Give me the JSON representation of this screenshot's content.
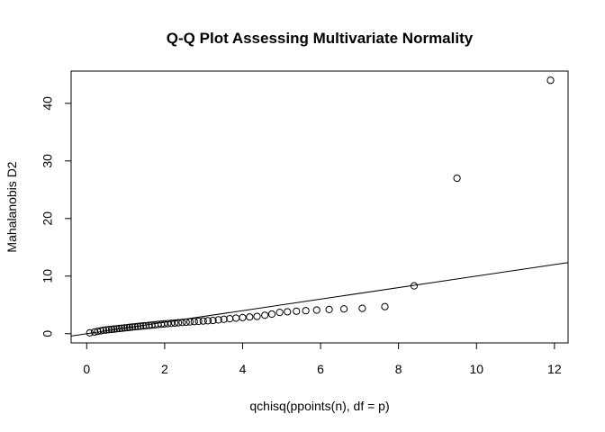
{
  "chart_data": {
    "type": "scatter",
    "title": "Q-Q Plot Assessing Multivariate Normality",
    "xlabel": "qchisq(ppoints(n), df = p)",
    "ylabel": "Mahalanobis D2",
    "xlim": [
      -0.4,
      12.35
    ],
    "ylim": [
      -1.6,
      45.6
    ],
    "x_ticks": [
      0,
      2,
      4,
      6,
      8,
      10,
      12
    ],
    "x_tick_labels": [
      "0",
      "2",
      "4",
      "6",
      "8",
      "10",
      "12"
    ],
    "y_ticks": [
      0,
      10,
      20,
      30,
      40
    ],
    "y_tick_labels": [
      "0",
      "10",
      "20",
      "30",
      "40"
    ],
    "grid": false,
    "reference_line": {
      "intercept": 0,
      "slope": 1
    },
    "points": [
      [
        0.08,
        0.15
      ],
      [
        0.2,
        0.3
      ],
      [
        0.28,
        0.4
      ],
      [
        0.36,
        0.5
      ],
      [
        0.43,
        0.6
      ],
      [
        0.5,
        0.65
      ],
      [
        0.57,
        0.7
      ],
      [
        0.64,
        0.75
      ],
      [
        0.7,
        0.8
      ],
      [
        0.77,
        0.85
      ],
      [
        0.84,
        0.9
      ],
      [
        0.9,
        0.95
      ],
      [
        0.97,
        1.0
      ],
      [
        1.04,
        1.05
      ],
      [
        1.1,
        1.1
      ],
      [
        1.17,
        1.15
      ],
      [
        1.24,
        1.2
      ],
      [
        1.31,
        1.25
      ],
      [
        1.38,
        1.3
      ],
      [
        1.45,
        1.35
      ],
      [
        1.52,
        1.4
      ],
      [
        1.6,
        1.45
      ],
      [
        1.67,
        1.5
      ],
      [
        1.75,
        1.55
      ],
      [
        1.83,
        1.6
      ],
      [
        1.91,
        1.65
      ],
      [
        1.99,
        1.7
      ],
      [
        2.08,
        1.75
      ],
      [
        2.17,
        1.8
      ],
      [
        2.26,
        1.85
      ],
      [
        2.35,
        1.9
      ],
      [
        2.45,
        1.95
      ],
      [
        2.55,
        2.0
      ],
      [
        2.65,
        2.05
      ],
      [
        2.76,
        2.1
      ],
      [
        2.87,
        2.15
      ],
      [
        2.99,
        2.2
      ],
      [
        3.11,
        2.25
      ],
      [
        3.24,
        2.3
      ],
      [
        3.38,
        2.4
      ],
      [
        3.52,
        2.5
      ],
      [
        3.67,
        2.6
      ],
      [
        3.83,
        2.7
      ],
      [
        4.0,
        2.8
      ],
      [
        4.18,
        2.9
      ],
      [
        4.37,
        3.0
      ],
      [
        4.57,
        3.2
      ],
      [
        4.75,
        3.4
      ],
      [
        4.95,
        3.7
      ],
      [
        5.15,
        3.8
      ],
      [
        5.38,
        3.9
      ],
      [
        5.62,
        4.0
      ],
      [
        5.9,
        4.1
      ],
      [
        6.22,
        4.2
      ],
      [
        6.6,
        4.3
      ],
      [
        7.07,
        4.4
      ],
      [
        7.65,
        4.7
      ],
      [
        8.4,
        8.3
      ],
      [
        9.5,
        27.0
      ],
      [
        11.9,
        44.0
      ]
    ]
  }
}
